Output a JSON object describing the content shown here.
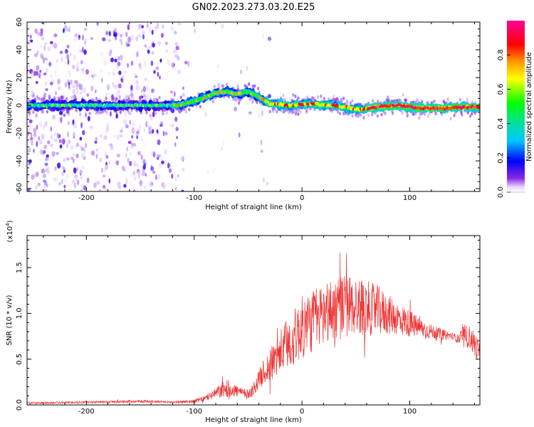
{
  "title": "GN02.2023.273.03.20.E25",
  "chart_data": [
    {
      "type": "heatmap",
      "xlabel": "Height of straight line (km)",
      "ylabel": "Frequency (Hz)",
      "xlim": [
        -255,
        165
      ],
      "ylim": [
        -62,
        60
      ],
      "xticks": [
        -200,
        -100,
        0,
        100
      ],
      "xtick_labels": [
        "-200",
        "-100",
        "0",
        "100"
      ],
      "yticks": [
        -60,
        -40,
        -20,
        0,
        20,
        40,
        60
      ],
      "ytick_labels": [
        "-60",
        "-40",
        "-20",
        "0",
        "20",
        "40",
        "60"
      ],
      "colorbar": {
        "label": "Normalized spectral amplitude",
        "range": [
          0,
          1
        ],
        "ticks": [
          0.0,
          0.2,
          0.4,
          0.6,
          0.8
        ],
        "tick_labels": [
          "0.0",
          "0.2",
          "0.4",
          "0.6",
          "0.8"
        ],
        "colormap": "rainbow-violet-to-magenta"
      },
      "ridge": {
        "x": [
          -250,
          -200,
          -150,
          -115,
          -100,
          -90,
          -80,
          -70,
          -60,
          -50,
          -40,
          -30,
          -10,
          10,
          30,
          45,
          55,
          70,
          90,
          110,
          130,
          160
        ],
        "frequency": [
          0,
          0,
          0,
          0,
          3,
          6,
          9,
          10,
          8,
          10,
          6,
          1,
          0,
          1,
          0,
          -2,
          -3,
          -1,
          0,
          -2,
          -2,
          -1
        ]
      }
    },
    {
      "type": "line",
      "xlabel": "Height of straight line (km)",
      "ylabel": "SNR (10 * v/v)",
      "scale_note": "(x10",
      "scale_exp": "4",
      "scale_close": ")",
      "xlim": [
        -255,
        165
      ],
      "ylim": [
        0,
        1.85
      ],
      "xticks": [
        -200,
        -100,
        0,
        100
      ],
      "xtick_labels": [
        "-200",
        "-100",
        "0",
        "100"
      ],
      "yticks": [
        0.0,
        0.5,
        1.0,
        1.5
      ],
      "ytick_labels": [
        "0.0",
        "0.5",
        "1.0",
        "1.5"
      ],
      "color": "#ee3333",
      "series": [
        {
          "x": [
            -255,
            -200,
            -150,
            -120,
            -100,
            -90,
            -80,
            -70,
            -60,
            -55,
            -50,
            -45,
            -40,
            -35,
            -30,
            -25,
            -20,
            -15,
            -10,
            -5,
            0,
            10,
            20,
            30,
            40,
            50,
            60,
            70,
            80,
            90,
            100,
            110,
            120,
            130,
            140,
            145,
            150,
            155,
            160,
            165
          ],
          "y": [
            0.02,
            0.03,
            0.04,
            0.03,
            0.04,
            0.07,
            0.13,
            0.18,
            0.15,
            0.13,
            0.12,
            0.17,
            0.28,
            0.37,
            0.42,
            0.5,
            0.58,
            0.64,
            0.7,
            0.77,
            0.84,
            0.92,
            1.0,
            1.05,
            1.08,
            1.08,
            1.06,
            1.03,
            0.99,
            0.94,
            0.89,
            0.84,
            0.8,
            0.77,
            0.75,
            0.72,
            0.74,
            0.75,
            0.66,
            0.58
          ],
          "amplitude": [
            0.01,
            0.01,
            0.015,
            0.01,
            0.02,
            0.03,
            0.06,
            0.1,
            0.07,
            0.05,
            0.05,
            0.08,
            0.1,
            0.15,
            0.18,
            0.22,
            0.24,
            0.28,
            0.3,
            0.32,
            0.35,
            0.35,
            0.35,
            0.36,
            0.36,
            0.33,
            0.3,
            0.28,
            0.22,
            0.18,
            0.15,
            0.11,
            0.08,
            0.06,
            0.04,
            0.05,
            0.14,
            0.12,
            0.15,
            0.1
          ]
        }
      ]
    }
  ]
}
